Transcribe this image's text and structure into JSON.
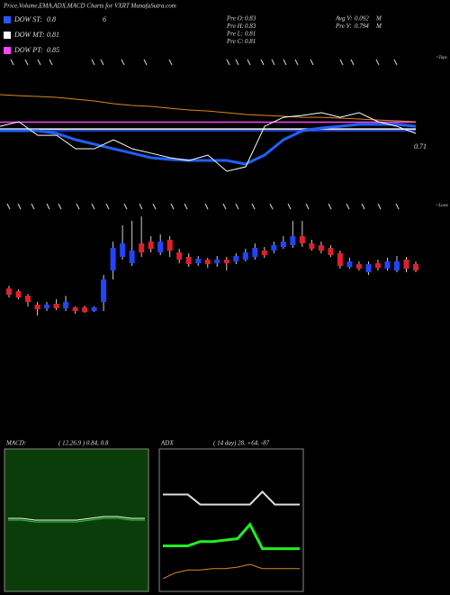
{
  "header": {
    "title": "Price,Volume,EMA,ADX,MACD Charts for VXRT MunafaSutra.com",
    "corner_label": "6",
    "stats": [
      {
        "label": "Pre O:",
        "value": 0.83
      },
      {
        "label": "Pre H:",
        "value": 0.83
      },
      {
        "label": "Pre L:",
        "value": 0.81
      },
      {
        "label": "Pre C:",
        "value": 0.81
      }
    ],
    "volume": [
      {
        "label": "Avg V:",
        "value": 0.092,
        "unit": "M"
      },
      {
        "label": "Pre V:",
        "value": 0.794,
        "unit": "M"
      }
    ],
    "tops_label": "<Tops",
    "lows_label": "<Lows"
  },
  "chart_data": [
    {
      "type": "line",
      "ylim": [
        0.35,
        1.25
      ],
      "yticks": [
        0.71
      ],
      "dow_levels": [
        {
          "label": "DOW ST:",
          "value": 0.8,
          "color": "#2a55ff"
        },
        {
          "label": "DOW MT:",
          "value": 0.81,
          "color": "#ffffff"
        },
        {
          "label": "DOW PT:",
          "value": 0.85,
          "color": "#ff44ff"
        }
      ],
      "series": [
        {
          "color": "#d98a1c",
          "width": 1,
          "values": [
            1.012,
            1.006,
            1.001,
            0.996,
            0.985,
            0.975,
            0.959,
            0.948,
            0.943,
            0.932,
            0.922,
            0.916,
            0.906,
            0.895,
            0.89,
            0.885,
            0.879,
            0.879,
            0.874,
            0.869,
            0.863,
            0.858,
            0.853
          ]
        },
        {
          "color": "#2060ff",
          "width": 3,
          "values": [
            0.8,
            0.8,
            0.8,
            0.784,
            0.747,
            0.721,
            0.694,
            0.668,
            0.641,
            0.631,
            0.625,
            0.625,
            0.625,
            0.604,
            0.657,
            0.747,
            0.8,
            0.816,
            0.826,
            0.837,
            0.837,
            0.837,
            0.826
          ]
        },
        {
          "color": "#ffffff",
          "width": 1,
          "values": [
            0.826,
            0.853,
            0.773,
            0.773,
            0.694,
            0.694,
            0.747,
            0.694,
            0.668,
            0.641,
            0.625,
            0.657,
            0.562,
            0.588,
            0.826,
            0.879,
            0.89,
            0.906,
            0.879,
            0.906,
            0.853,
            0.826,
            0.784
          ]
        }
      ]
    },
    {
      "type": "candlestick",
      "ylim": [
        0.55,
        1.07
      ],
      "up_color": "#2244ff",
      "down_color": "#e0202a",
      "open": [
        0.71,
        0.698,
        0.678,
        0.638,
        0.622,
        0.642,
        0.622,
        0.626,
        0.626,
        0.61,
        0.65,
        0.79,
        0.85,
        0.822,
        0.91,
        0.918,
        0.87,
        0.926,
        0.87,
        0.85,
        0.822,
        0.838,
        0.822,
        0.838,
        0.83,
        0.838,
        0.85,
        0.878,
        0.878,
        0.894,
        0.902,
        0.942,
        0.91,
        0.902,
        0.89,
        0.866,
        0.806,
        0.818,
        0.782,
        0.822,
        0.798,
        0.79,
        0.838,
        0.818
      ],
      "high": [
        0.722,
        0.706,
        0.686,
        0.65,
        0.65,
        0.662,
        0.678,
        0.63,
        0.634,
        0.63,
        0.77,
        0.918,
        0.99,
        1.01,
        1.03,
        0.942,
        0.95,
        0.942,
        0.886,
        0.866,
        0.854,
        0.846,
        0.854,
        0.85,
        0.866,
        0.886,
        0.91,
        0.894,
        0.918,
        0.942,
        1.01,
        1.01,
        0.926,
        0.918,
        0.902,
        0.878,
        0.846,
        0.83,
        0.83,
        0.838,
        0.846,
        0.854,
        0.85,
        0.83
      ],
      "low": [
        0.67,
        0.662,
        0.63,
        0.59,
        0.61,
        0.614,
        0.61,
        0.598,
        0.602,
        0.606,
        0.61,
        0.75,
        0.838,
        0.81,
        0.85,
        0.87,
        0.858,
        0.85,
        0.822,
        0.806,
        0.81,
        0.802,
        0.806,
        0.79,
        0.818,
        0.83,
        0.838,
        0.846,
        0.866,
        0.886,
        0.89,
        0.894,
        0.878,
        0.866,
        0.85,
        0.798,
        0.798,
        0.79,
        0.77,
        0.79,
        0.79,
        0.782,
        0.782,
        0.782
      ],
      "close": [
        0.682,
        0.67,
        0.65,
        0.618,
        0.638,
        0.622,
        0.65,
        0.61,
        0.606,
        0.626,
        0.75,
        0.89,
        0.91,
        0.878,
        0.87,
        0.886,
        0.918,
        0.878,
        0.838,
        0.818,
        0.842,
        0.818,
        0.838,
        0.822,
        0.854,
        0.87,
        0.89,
        0.858,
        0.902,
        0.918,
        0.942,
        0.91,
        0.886,
        0.878,
        0.858,
        0.81,
        0.83,
        0.798,
        0.818,
        0.802,
        0.83,
        0.83,
        0.798,
        0.79
      ]
    },
    {
      "type": "line",
      "title": "MACD:",
      "subtitle": "( 12,26,9 ) 0.84, 0.8",
      "ylim": [
        -0.4,
        0.4
      ],
      "background": "#0b3d0b",
      "series": [
        {
          "color": "#ffffff",
          "width": 1,
          "values": [
            0.01,
            0.01,
            0.0,
            0.0,
            0.0,
            0.0,
            0.01,
            0.02,
            0.02,
            0.01,
            0.01
          ]
        },
        {
          "color": "#33cc33",
          "width": 1,
          "values": [
            0.0,
            0.0,
            -0.01,
            -0.01,
            -0.01,
            -0.01,
            0.0,
            0.01,
            0.01,
            0.0,
            0.0
          ]
        }
      ]
    },
    {
      "type": "line",
      "title": "ADX",
      "subtitle": "( 14 day) 28, +64, -87",
      "ylim": [
        0,
        100
      ],
      "background": "#000000",
      "series": [
        {
          "color": "#dddddd",
          "width": 2,
          "values": [
            68,
            68,
            68,
            61,
            61,
            61,
            61,
            61,
            70,
            61,
            61,
            61
          ]
        },
        {
          "color": "#22ee22",
          "width": 3,
          "values": [
            32,
            32,
            32,
            35,
            35,
            36,
            37,
            47,
            30,
            30,
            30,
            30
          ]
        },
        {
          "color": "#d98a1c",
          "width": 1,
          "values": [
            9,
            13,
            15,
            15,
            16,
            16,
            17,
            19,
            16,
            16,
            16,
            16
          ]
        }
      ]
    }
  ]
}
